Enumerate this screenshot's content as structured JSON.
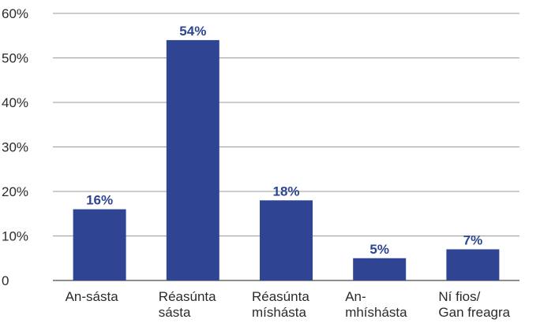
{
  "colors": {
    "bar": "#2f4594",
    "label": "#2f4594"
  },
  "chart_data": {
    "type": "bar",
    "categories": [
      [
        "An-sásta"
      ],
      [
        "Réasúnta",
        "sásta"
      ],
      [
        "Réasúnta",
        "míshásta"
      ],
      [
        "An-",
        "mhíshásta"
      ],
      [
        "Ní fios/",
        "Gan freagra"
      ]
    ],
    "values": [
      16,
      54,
      18,
      5,
      7
    ],
    "value_labels": [
      "16%",
      "54%",
      "18%",
      "5%",
      "7%"
    ],
    "title": "",
    "xlabel": "",
    "ylabel": "",
    "ylim": [
      0,
      60
    ],
    "yticks": [
      0,
      10,
      20,
      30,
      40,
      50,
      60
    ],
    "ytick_labels": [
      "0",
      "10%",
      "20%",
      "30%",
      "40%",
      "50%",
      "60%"
    ],
    "grid": true,
    "legend": "none"
  }
}
